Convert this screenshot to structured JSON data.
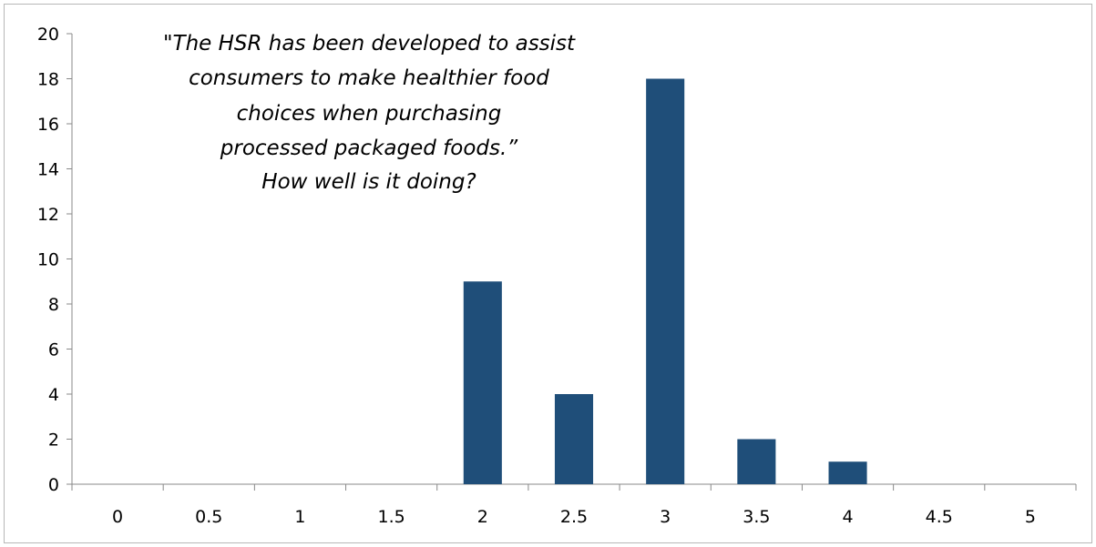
{
  "chart_data": {
    "type": "bar",
    "title_lines": [
      "\"The HSR has been developed to assist",
      "consumers to make healthier food",
      "choices when purchasing",
      "processed packaged foods.”",
      "How well is it doing?"
    ],
    "categories": [
      "0",
      "0.5",
      "1",
      "1.5",
      "2",
      "2.5",
      "3",
      "3.5",
      "4",
      "4.5",
      "5"
    ],
    "values": [
      0,
      0,
      0,
      0,
      9,
      4,
      18,
      2,
      1,
      0,
      0
    ],
    "ylim": [
      0,
      20
    ],
    "yticks": [
      "0",
      "2",
      "4",
      "6",
      "8",
      "10",
      "12",
      "14",
      "16",
      "18",
      "20"
    ],
    "bar_color": "#1f4e79",
    "grid": false,
    "legend": "none"
  }
}
